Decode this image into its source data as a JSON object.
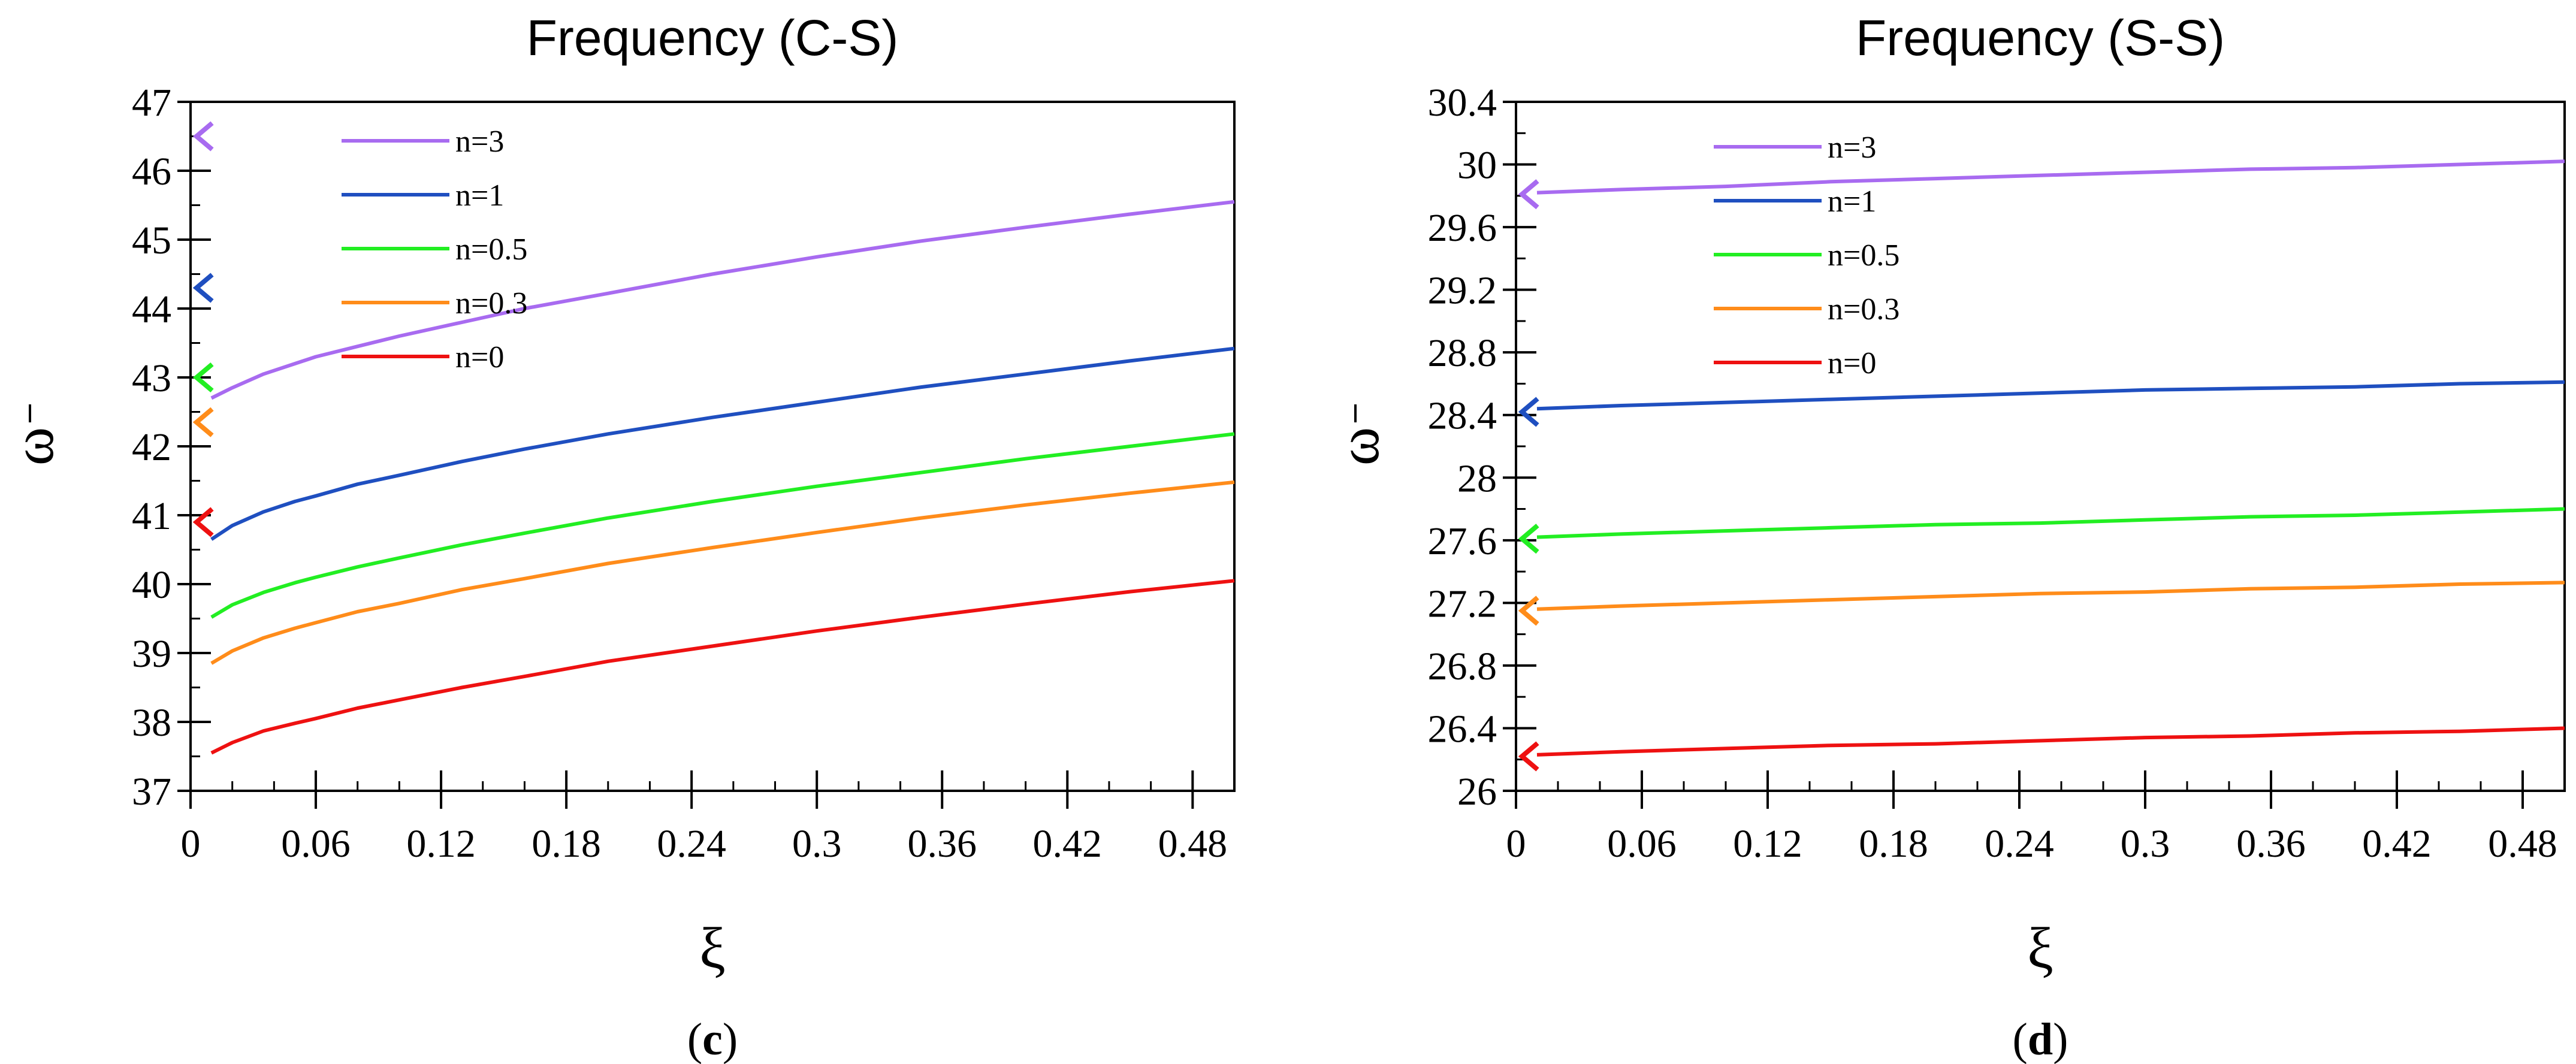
{
  "chart_data": [
    {
      "type": "line",
      "panel_id": "c",
      "title": "Frequency (C-S)",
      "xlabel": "ξ",
      "ylabel": "ω",
      "xlim": [
        0,
        0.5
      ],
      "ylim": [
        37,
        47
      ],
      "x_ticks": [
        0,
        0.06,
        0.12,
        0.18,
        0.24,
        0.3,
        0.36,
        0.42,
        0.48
      ],
      "x_tick_labels": [
        "0",
        "0.06",
        "0.12",
        "0.18",
        "0.24",
        "0.3",
        "0.36",
        "0.42",
        "0.48"
      ],
      "y_ticks": [
        37,
        38,
        39,
        40,
        41,
        42,
        43,
        44,
        45,
        46,
        47
      ],
      "y_tick_labels": [
        "37",
        "38",
        "39",
        "40",
        "41",
        "42",
        "43",
        "44",
        "45",
        "46",
        "47"
      ],
      "x_minor_step": 0.02,
      "y_minor_step": 0.5,
      "x": [
        0.01,
        0.02,
        0.035,
        0.05,
        0.06,
        0.08,
        0.1,
        0.13,
        0.16,
        0.2,
        0.25,
        0.3,
        0.35,
        0.4,
        0.45,
        0.5
      ],
      "series": [
        {
          "name": "n=3",
          "color": "#a86bf0",
          "values": [
            42.7,
            42.85,
            43.05,
            43.2,
            43.3,
            43.45,
            43.6,
            43.8,
            44.0,
            44.22,
            44.5,
            44.75,
            44.98,
            45.18,
            45.37,
            45.55
          ],
          "marker_value": 46.5
        },
        {
          "name": "n=1",
          "color": "#1f4fc0",
          "values": [
            40.65,
            40.85,
            41.05,
            41.2,
            41.28,
            41.45,
            41.58,
            41.78,
            41.96,
            42.18,
            42.42,
            42.64,
            42.86,
            43.05,
            43.24,
            43.42
          ],
          "marker_value": 44.3
        },
        {
          "name": "n=0.5",
          "color": "#22ee22",
          "values": [
            39.52,
            39.7,
            39.88,
            40.02,
            40.1,
            40.25,
            40.38,
            40.57,
            40.74,
            40.96,
            41.2,
            41.42,
            41.62,
            41.82,
            42.0,
            42.18
          ],
          "marker_value": 43.0
        },
        {
          "name": "n=0.3",
          "color": "#ff8c1a",
          "values": [
            38.85,
            39.03,
            39.22,
            39.36,
            39.44,
            39.6,
            39.72,
            39.92,
            40.08,
            40.3,
            40.53,
            40.75,
            40.96,
            41.15,
            41.32,
            41.48
          ],
          "marker_value": 42.35
        },
        {
          "name": "n=0",
          "color": "#ee1111",
          "values": [
            37.55,
            37.7,
            37.87,
            37.98,
            38.05,
            38.2,
            38.32,
            38.5,
            38.66,
            38.88,
            39.1,
            39.32,
            39.52,
            39.71,
            39.89,
            40.05
          ],
          "marker_value": 40.9
        }
      ],
      "legend_position": "top-left",
      "panel_label": "c"
    },
    {
      "type": "line",
      "panel_id": "d",
      "title": "Frequency (S-S)",
      "xlabel": "ξ",
      "ylabel": "ω",
      "xlim": [
        0,
        0.5
      ],
      "ylim": [
        26,
        30.4
      ],
      "x_ticks": [
        0,
        0.06,
        0.12,
        0.18,
        0.24,
        0.3,
        0.36,
        0.42,
        0.48
      ],
      "x_tick_labels": [
        "0",
        "0.06",
        "0.12",
        "0.18",
        "0.24",
        "0.3",
        "0.36",
        "0.42",
        "0.48"
      ],
      "y_ticks": [
        26,
        26.4,
        26.8,
        27.2,
        27.6,
        28,
        28.4,
        28.8,
        29.2,
        29.6,
        30,
        30.4
      ],
      "y_tick_labels": [
        "26",
        "26.4",
        "26.8",
        "27.2",
        "27.6",
        "28",
        "28.4",
        "28.8",
        "29.2",
        "29.6",
        "30",
        "30.4"
      ],
      "x_minor_step": 0.02,
      "y_minor_step": 0.2,
      "x": [
        0.01,
        0.05,
        0.1,
        0.15,
        0.2,
        0.25,
        0.3,
        0.35,
        0.4,
        0.45,
        0.5
      ],
      "series": [
        {
          "name": "n=3",
          "color": "#a86bf0",
          "values": [
            29.82,
            29.84,
            29.86,
            29.89,
            29.91,
            29.93,
            29.95,
            29.97,
            29.98,
            30.0,
            30.02
          ],
          "marker_value": 29.81
        },
        {
          "name": "n=1",
          "color": "#1f4fc0",
          "values": [
            28.44,
            28.46,
            28.48,
            28.5,
            28.52,
            28.54,
            28.56,
            28.57,
            28.58,
            28.6,
            28.61
          ],
          "marker_value": 28.42
        },
        {
          "name": "n=0.5",
          "color": "#22ee22",
          "values": [
            27.62,
            27.64,
            27.66,
            27.68,
            27.7,
            27.71,
            27.73,
            27.75,
            27.76,
            27.78,
            27.8
          ],
          "marker_value": 27.61
        },
        {
          "name": "n=0.3",
          "color": "#ff8c1a",
          "values": [
            27.16,
            27.18,
            27.2,
            27.22,
            27.24,
            27.26,
            27.27,
            27.29,
            27.3,
            27.32,
            27.33
          ],
          "marker_value": 27.15
        },
        {
          "name": "n=0",
          "color": "#ee1111",
          "values": [
            26.23,
            26.25,
            26.27,
            26.29,
            26.3,
            26.32,
            26.34,
            26.35,
            26.37,
            26.38,
            26.4
          ],
          "marker_value": 26.22
        }
      ],
      "legend_position": "top-left",
      "panel_label": "d"
    }
  ]
}
